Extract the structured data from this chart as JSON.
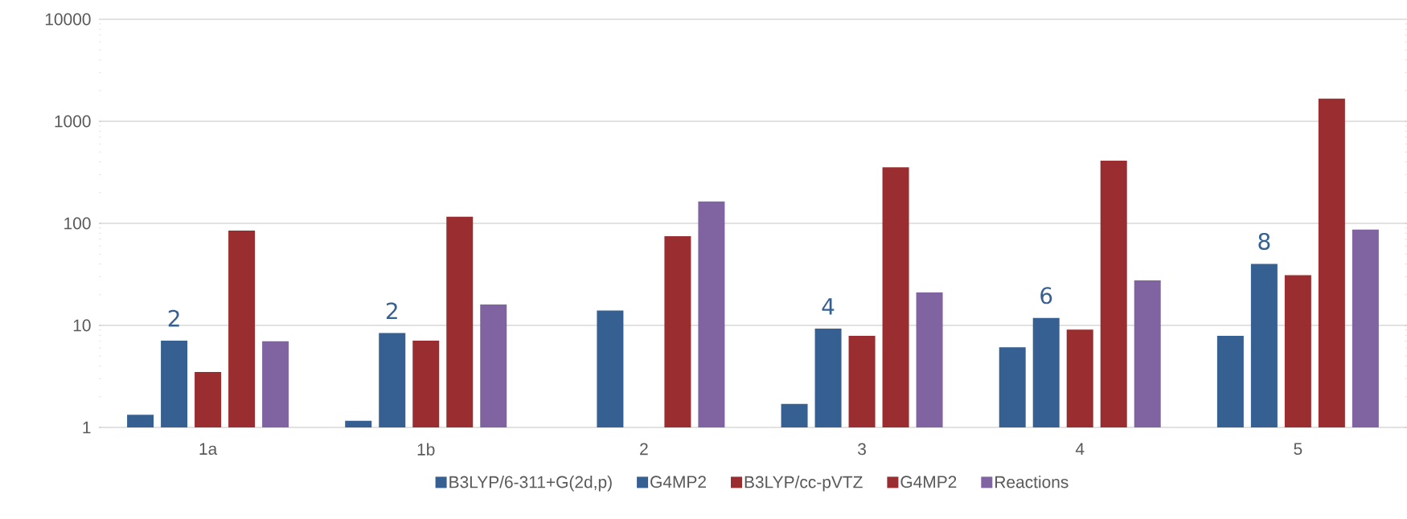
{
  "chart_data": {
    "type": "bar",
    "log": "y",
    "grid": "y",
    "legend": "bottom",
    "categories": [
      "1a",
      "1b",
      "2",
      "3",
      "4",
      "5"
    ],
    "ylim": [
      1,
      10000
    ],
    "yticks": [
      1,
      10,
      100,
      1000,
      10000
    ],
    "series": [
      {
        "name": "B3LYP/6-311+G(2d,p)",
        "color": "#376092",
        "values": [
          1.33,
          1.16,
          null,
          1.7,
          6.1,
          7.9
        ]
      },
      {
        "name": "G4MP2",
        "color": "#376092",
        "values": [
          7.1,
          8.4,
          14,
          9.3,
          11.8,
          40
        ]
      },
      {
        "name": "B3LYP/cc-pVTZ",
        "color": "#9a2d2f",
        "values": [
          3.5,
          7.1,
          null,
          7.9,
          9.1,
          31
        ]
      },
      {
        "name": "G4MP2",
        "color": "#9a2d2f",
        "values": [
          85,
          116,
          75,
          355,
          411,
          1670
        ]
      },
      {
        "name": "Reactions",
        "color": "#8064a2",
        "values": [
          7.0,
          16,
          164,
          21,
          27.6,
          87
        ]
      }
    ],
    "annotations": [
      "2",
      "2",
      "4",
      "6",
      "8"
    ]
  }
}
